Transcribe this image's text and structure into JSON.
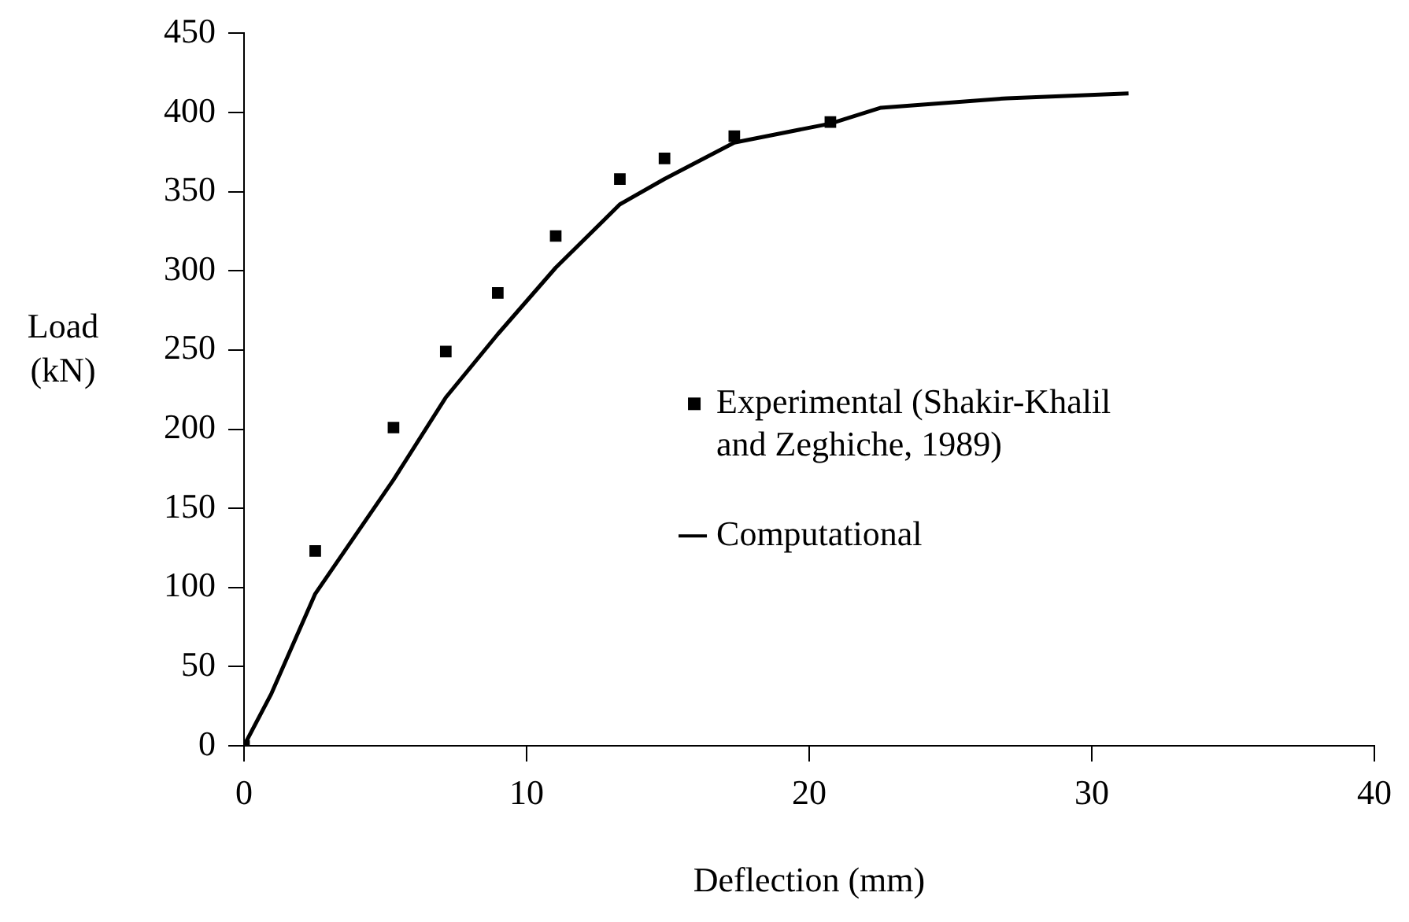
{
  "chart_data": {
    "type": "scatter",
    "xlabel": "Deflection (mm)",
    "ylabel": "Load (kN)",
    "xlim": [
      0,
      40
    ],
    "xticks": [
      0,
      10,
      20,
      30,
      40
    ],
    "ylim": [
      0,
      450
    ],
    "yticks": [
      0,
      50,
      100,
      150,
      200,
      250,
      300,
      350,
      400,
      450
    ],
    "grid": false,
    "legend": "right",
    "series": [
      {
        "name": "Experimental (Shakir-Khalil and Zeghiche, 1989)",
        "marker": "square",
        "color": "#000000",
        "x": [
          0,
          2.52,
          5.29,
          7.14,
          8.98,
          11.03,
          13.3,
          14.88,
          17.35,
          20.75
        ],
        "values": [
          0,
          123,
          201,
          249,
          286,
          322,
          358,
          371,
          385,
          394
        ]
      },
      {
        "name": "Computational",
        "type": "line",
        "marker": "none",
        "line_style": "solid",
        "color": "#000000",
        "x": [
          0,
          0.97,
          2.52,
          5.29,
          7.14,
          8.98,
          11.03,
          13.3,
          14.88,
          17.35,
          20.75,
          22.54,
          27,
          31.3
        ],
        "values": [
          0,
          33,
          96,
          168,
          220,
          260,
          302,
          342,
          358,
          381,
          393,
          403,
          409,
          412
        ]
      }
    ]
  }
}
